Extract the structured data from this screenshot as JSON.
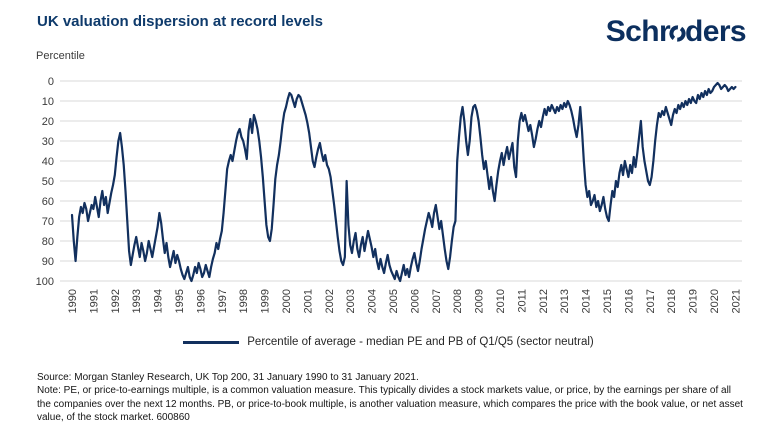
{
  "header": {
    "title": "UK valuation dispersion at record levels",
    "logo_pre": "Schr",
    "logo_post": "ders",
    "brand_color": "#0c2f5e"
  },
  "chart_data": {
    "type": "line",
    "title": "UK valuation dispersion at record levels",
    "ylabel": "Percentile",
    "xlabel": "",
    "ylim": [
      0,
      100
    ],
    "y_axis_inverted": true,
    "grid": true,
    "legend_position": "bottom",
    "y_ticks": [
      0,
      10,
      20,
      30,
      40,
      50,
      60,
      70,
      80,
      90,
      100
    ],
    "x_ticks": [
      "1990",
      "1991",
      "1992",
      "1993",
      "1994",
      "1995",
      "1996",
      "1997",
      "1998",
      "1999",
      "2000",
      "2001",
      "2002",
      "2003",
      "2004",
      "2005",
      "2006",
      "2007",
      "2008",
      "2009",
      "2010",
      "2011",
      "2012",
      "2013",
      "2014",
      "2015",
      "2016",
      "2017",
      "2018",
      "2019",
      "2020",
      "2021"
    ],
    "frequency": "monthly",
    "start": "January 1990",
    "end": "January 2021",
    "line_color": "#12305e",
    "grid_color": "#d9d9d9",
    "series": [
      {
        "name": "Percentile of average - median PE and PB of Q1/Q5 (sector neutral)",
        "values": [
          67,
          80,
          90,
          78,
          68,
          63,
          66,
          61,
          64,
          70,
          66,
          62,
          64,
          58,
          63,
          68,
          60,
          55,
          62,
          58,
          66,
          61,
          56,
          52,
          47,
          38,
          30,
          26,
          33,
          42,
          55,
          70,
          85,
          92,
          87,
          82,
          78,
          83,
          88,
          81,
          85,
          90,
          86,
          80,
          84,
          88,
          83,
          78,
          73,
          66,
          71,
          79,
          86,
          81,
          88,
          93,
          89,
          85,
          91,
          87,
          90,
          94,
          97,
          99,
          96,
          93,
          98,
          100,
          97,
          93,
          96,
          91,
          94,
          98,
          96,
          92,
          95,
          98,
          93,
          89,
          86,
          81,
          84,
          79,
          75,
          66,
          55,
          44,
          40,
          37,
          40,
          35,
          30,
          26,
          24,
          28,
          30,
          34,
          39,
          25,
          19,
          26,
          17,
          20,
          24,
          30,
          38,
          48,
          60,
          72,
          78,
          80,
          74,
          62,
          49,
          42,
          37,
          30,
          22,
          16,
          13,
          9,
          6,
          7,
          10,
          13,
          9,
          7,
          8,
          11,
          14,
          17,
          21,
          26,
          33,
          40,
          43,
          38,
          34,
          31,
          36,
          40,
          37,
          42,
          44,
          48,
          55,
          62,
          70,
          78,
          85,
          90,
          92,
          88,
          50,
          72,
          82,
          86,
          80,
          76,
          84,
          88,
          82,
          78,
          85,
          80,
          75,
          79,
          83,
          88,
          84,
          90,
          94,
          89,
          93,
          96,
          91,
          87,
          92,
          95,
          97,
          99,
          95,
          98,
          100,
          96,
          92,
          97,
          94,
          98,
          93,
          89,
          86,
          91,
          95,
          90,
          84,
          79,
          74,
          70,
          66,
          69,
          73,
          66,
          62,
          68,
          74,
          70,
          77,
          84,
          90,
          94,
          88,
          80,
          73,
          70,
          40,
          28,
          18,
          13,
          20,
          30,
          37,
          30,
          18,
          13,
          12,
          15,
          20,
          28,
          37,
          44,
          40,
          47,
          54,
          48,
          55,
          60,
          52,
          45,
          40,
          36,
          42,
          37,
          33,
          39,
          35,
          31,
          43,
          48,
          30,
          20,
          16,
          20,
          17,
          21,
          25,
          22,
          27,
          33,
          29,
          24,
          20,
          23,
          18,
          14,
          17,
          13,
          15,
          12,
          14,
          16,
          13,
          15,
          12,
          14,
          11,
          13,
          10,
          12,
          15,
          19,
          24,
          28,
          22,
          13,
          25,
          40,
          52,
          58,
          55,
          62,
          60,
          57,
          63,
          60,
          65,
          62,
          58,
          64,
          68,
          70,
          62,
          55,
          58,
          50,
          53,
          46,
          42,
          47,
          40,
          44,
          48,
          42,
          46,
          38,
          43,
          36,
          28,
          20,
          33,
          40,
          45,
          50,
          52,
          48,
          40,
          30,
          22,
          16,
          18,
          15,
          17,
          13,
          16,
          19,
          22,
          17,
          14,
          16,
          12,
          14,
          11,
          13,
          10,
          12,
          9,
          11,
          8,
          10,
          11,
          7,
          9,
          6,
          8,
          5,
          7,
          4,
          6,
          5,
          3,
          2,
          1,
          2,
          4,
          3,
          2,
          3,
          5,
          4,
          3,
          4,
          3
        ]
      }
    ]
  },
  "legend": {
    "label": "Percentile of average - median PE and PB of Q1/Q5 (sector neutral)"
  },
  "footer": {
    "source": "Source: Morgan Stanley Research, UK Top 200, 31 January 1990 to 31 January 2021.",
    "note": "Note: PE, or price-to-earnings multiple, is a common valuation measure. This typically divides a stock markets value, or price, by the earnings per share of all the companies over the next 12 months. PB, or price-to-book multiple, is another valuation measure, which compares the price with the book value, or net asset value, of the stock market. 600860"
  }
}
